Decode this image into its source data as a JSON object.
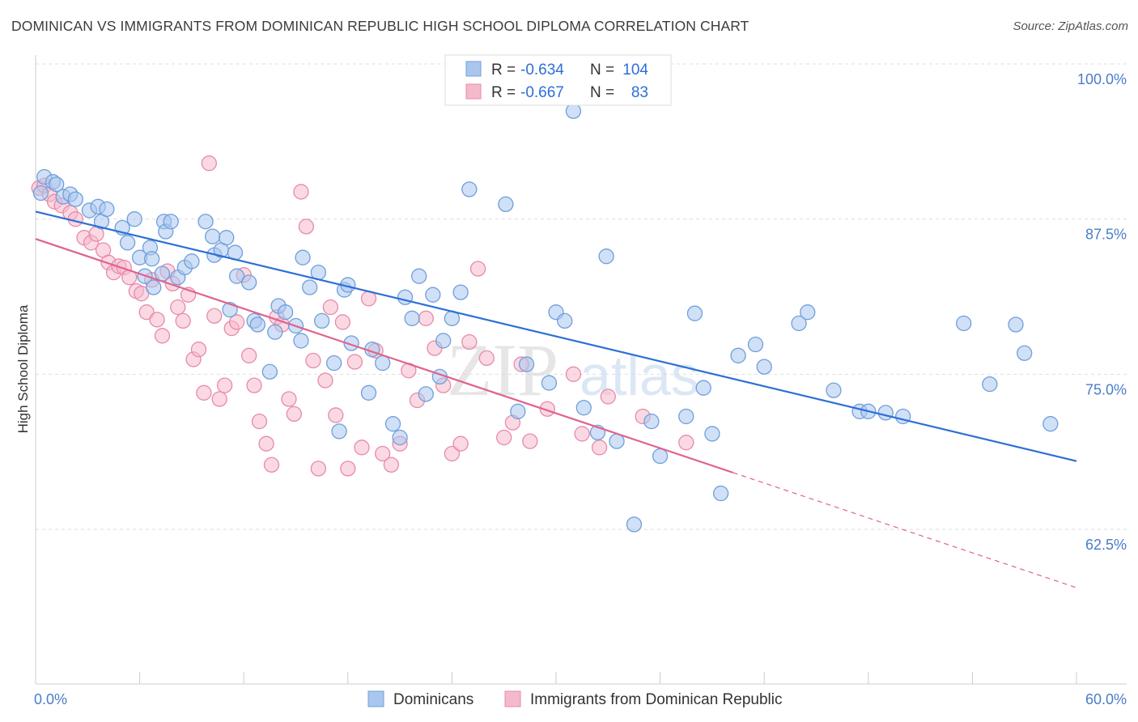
{
  "title": "DOMINICAN VS IMMIGRANTS FROM DOMINICAN REPUBLIC HIGH SCHOOL DIPLOMA CORRELATION CHART",
  "source": "Source: ZipAtlas.com",
  "watermark": {
    "zip": "ZIP",
    "atlas": "atlas"
  },
  "colors": {
    "blue_fill": "#a9c7ee",
    "blue_stroke": "#6f9fdc",
    "blue_line": "#2d6fd6",
    "pink_fill": "#f5b9cc",
    "pink_stroke": "#e88aa9",
    "pink_line": "#e0628d",
    "grid": "#dddddd",
    "tick_label": "#4a7cc9"
  },
  "legend": {
    "rows": [
      {
        "r_label": "R =",
        "r_value": "-0.634",
        "n_label": "N =",
        "n_value": "104"
      },
      {
        "r_label": "R =",
        "r_value": "-0.667",
        "n_label": "N =",
        "n_value": "83"
      }
    ]
  },
  "chart_data": {
    "type": "scatter",
    "title": "DOMINICAN VS IMMIGRANTS FROM DOMINICAN REPUBLIC HIGH SCHOOL DIPLOMA CORRELATION CHART",
    "xlabel": "",
    "ylabel": "High School Diploma",
    "xlim": [
      0,
      60
    ],
    "ylim": [
      52.5,
      103
    ],
    "x_tick_labels": [
      "0.0%",
      "60.0%"
    ],
    "y_ticks": [
      100,
      87.5,
      75,
      62.5
    ],
    "y_tick_labels": [
      "100.0%",
      "87.5%",
      "75.0%",
      "62.5%"
    ],
    "grid": "horizontal dashed",
    "legend_position": "top-center",
    "series": [
      {
        "name": "Dominicans",
        "r": -0.634,
        "n": 104,
        "trend": {
          "x": [
            0,
            60
          ],
          "y": [
            88.1,
            68.0
          ],
          "solid_until": 60
        },
        "points": [
          [
            0.3,
            89.6
          ],
          [
            0.5,
            90.9
          ],
          [
            1.0,
            90.5
          ],
          [
            1.2,
            90.3
          ],
          [
            1.6,
            89.3
          ],
          [
            2.0,
            89.5
          ],
          [
            2.3,
            89.1
          ],
          [
            3.1,
            88.2
          ],
          [
            3.6,
            88.5
          ],
          [
            3.8,
            87.3
          ],
          [
            4.1,
            88.3
          ],
          [
            5.0,
            86.8
          ],
          [
            5.3,
            85.6
          ],
          [
            5.7,
            87.5
          ],
          [
            6.0,
            84.4
          ],
          [
            6.6,
            85.2
          ],
          [
            6.7,
            84.3
          ],
          [
            6.3,
            82.9
          ],
          [
            6.8,
            82.0
          ],
          [
            7.3,
            83.1
          ],
          [
            7.4,
            87.3
          ],
          [
            7.5,
            86.5
          ],
          [
            7.8,
            87.3
          ],
          [
            8.2,
            82.8
          ],
          [
            8.6,
            83.6
          ],
          [
            9.0,
            84.1
          ],
          [
            9.8,
            87.3
          ],
          [
            10.2,
            86.1
          ],
          [
            10.3,
            84.6
          ],
          [
            10.7,
            85.0
          ],
          [
            11.0,
            86.0
          ],
          [
            11.2,
            80.2
          ],
          [
            11.5,
            84.8
          ],
          [
            11.6,
            82.9
          ],
          [
            12.3,
            82.4
          ],
          [
            12.6,
            79.3
          ],
          [
            12.8,
            79.0
          ],
          [
            13.5,
            75.2
          ],
          [
            13.8,
            78.4
          ],
          [
            14.0,
            80.5
          ],
          [
            14.4,
            80.0
          ],
          [
            15.0,
            78.9
          ],
          [
            15.3,
            77.7
          ],
          [
            15.4,
            84.4
          ],
          [
            15.8,
            82.0
          ],
          [
            16.3,
            83.2
          ],
          [
            16.5,
            79.3
          ],
          [
            17.2,
            75.9
          ],
          [
            17.5,
            70.4
          ],
          [
            17.8,
            81.8
          ],
          [
            18.0,
            82.2
          ],
          [
            18.2,
            77.5
          ],
          [
            19.2,
            73.5
          ],
          [
            19.4,
            77.0
          ],
          [
            20.0,
            75.9
          ],
          [
            20.6,
            71.0
          ],
          [
            21.0,
            69.9
          ],
          [
            21.3,
            81.2
          ],
          [
            21.7,
            79.5
          ],
          [
            22.1,
            82.9
          ],
          [
            22.5,
            73.4
          ],
          [
            22.9,
            81.4
          ],
          [
            23.3,
            74.8
          ],
          [
            23.5,
            77.7
          ],
          [
            24.0,
            79.5
          ],
          [
            24.5,
            81.6
          ],
          [
            25.0,
            89.9
          ],
          [
            26.0,
            100.1
          ],
          [
            26.5,
            99.4
          ],
          [
            27.1,
            88.7
          ],
          [
            27.8,
            72.0
          ],
          [
            28.3,
            75.8
          ],
          [
            29.6,
            74.3
          ],
          [
            30.0,
            80.0
          ],
          [
            30.5,
            79.3
          ],
          [
            31.0,
            96.2
          ],
          [
            31.6,
            72.3
          ],
          [
            32.4,
            70.3
          ],
          [
            32.9,
            84.5
          ],
          [
            33.5,
            69.6
          ],
          [
            34.5,
            62.9
          ],
          [
            35.5,
            71.2
          ],
          [
            36.0,
            68.4
          ],
          [
            37.5,
            71.6
          ],
          [
            38.0,
            79.9
          ],
          [
            38.5,
            73.9
          ],
          [
            39.0,
            70.2
          ],
          [
            39.5,
            65.4
          ],
          [
            40.5,
            76.5
          ],
          [
            41.5,
            77.4
          ],
          [
            42.0,
            75.6
          ],
          [
            44.0,
            79.1
          ],
          [
            44.5,
            80.0
          ],
          [
            46.0,
            73.7
          ],
          [
            47.5,
            72.0
          ],
          [
            48.0,
            72.0
          ],
          [
            49.0,
            71.9
          ],
          [
            50.0,
            71.6
          ],
          [
            53.5,
            79.1
          ],
          [
            55.0,
            74.2
          ],
          [
            56.5,
            79.0
          ],
          [
            57.0,
            76.7
          ],
          [
            58.5,
            71.0
          ]
        ]
      },
      {
        "name": "Immigrants from Dominican Republic",
        "r": -0.667,
        "n": 83,
        "trend": {
          "x": [
            0,
            60
          ],
          "y": [
            85.9,
            57.8
          ],
          "solid_until": 40.2
        },
        "points": [
          [
            0.2,
            90.0
          ],
          [
            0.5,
            90.2
          ],
          [
            0.8,
            89.5
          ],
          [
            1.1,
            88.9
          ],
          [
            1.5,
            88.6
          ],
          [
            2.0,
            88.0
          ],
          [
            2.3,
            87.5
          ],
          [
            2.8,
            86.0
          ],
          [
            3.2,
            85.6
          ],
          [
            3.5,
            86.3
          ],
          [
            3.9,
            85.0
          ],
          [
            4.2,
            84.0
          ],
          [
            4.5,
            83.2
          ],
          [
            4.8,
            83.7
          ],
          [
            5.1,
            83.6
          ],
          [
            5.4,
            82.8
          ],
          [
            5.8,
            81.7
          ],
          [
            6.1,
            81.5
          ],
          [
            6.4,
            80.0
          ],
          [
            6.7,
            82.6
          ],
          [
            7.0,
            79.4
          ],
          [
            7.3,
            78.1
          ],
          [
            7.6,
            83.3
          ],
          [
            7.9,
            82.3
          ],
          [
            8.2,
            80.4
          ],
          [
            8.5,
            79.3
          ],
          [
            8.8,
            81.4
          ],
          [
            9.1,
            76.2
          ],
          [
            9.4,
            77.0
          ],
          [
            9.7,
            73.5
          ],
          [
            10.0,
            92.0
          ],
          [
            10.3,
            79.7
          ],
          [
            10.6,
            73.0
          ],
          [
            10.9,
            74.1
          ],
          [
            11.3,
            78.7
          ],
          [
            11.6,
            79.2
          ],
          [
            12.0,
            83.0
          ],
          [
            12.3,
            76.5
          ],
          [
            12.6,
            74.1
          ],
          [
            12.9,
            71.2
          ],
          [
            13.3,
            69.4
          ],
          [
            13.6,
            67.7
          ],
          [
            13.9,
            79.6
          ],
          [
            14.2,
            79.0
          ],
          [
            14.6,
            73.0
          ],
          [
            14.9,
            71.8
          ],
          [
            15.3,
            89.7
          ],
          [
            15.6,
            86.9
          ],
          [
            16.0,
            76.1
          ],
          [
            16.3,
            67.4
          ],
          [
            16.7,
            74.5
          ],
          [
            17.0,
            80.4
          ],
          [
            17.3,
            71.7
          ],
          [
            17.7,
            79.2
          ],
          [
            18.0,
            67.4
          ],
          [
            18.4,
            76.0
          ],
          [
            18.8,
            69.1
          ],
          [
            19.2,
            81.1
          ],
          [
            19.6,
            76.9
          ],
          [
            20.0,
            68.6
          ],
          [
            20.5,
            67.7
          ],
          [
            21.0,
            69.4
          ],
          [
            21.5,
            75.3
          ],
          [
            22.0,
            72.9
          ],
          [
            22.5,
            79.5
          ],
          [
            23.0,
            77.1
          ],
          [
            23.5,
            74.1
          ],
          [
            24.0,
            68.6
          ],
          [
            24.5,
            69.4
          ],
          [
            25.0,
            77.6
          ],
          [
            25.5,
            83.5
          ],
          [
            26.0,
            76.3
          ],
          [
            27.0,
            69.9
          ],
          [
            27.5,
            71.1
          ],
          [
            28.0,
            75.8
          ],
          [
            28.5,
            69.6
          ],
          [
            29.5,
            72.2
          ],
          [
            31.0,
            75.0
          ],
          [
            31.5,
            70.2
          ],
          [
            32.5,
            69.1
          ],
          [
            33.0,
            73.2
          ],
          [
            35.0,
            71.6
          ],
          [
            37.5,
            69.5
          ]
        ]
      }
    ]
  },
  "bottom_legend": {
    "items": [
      {
        "label": "Dominicans"
      },
      {
        "label": "Immigrants from Dominican Republic"
      }
    ]
  }
}
